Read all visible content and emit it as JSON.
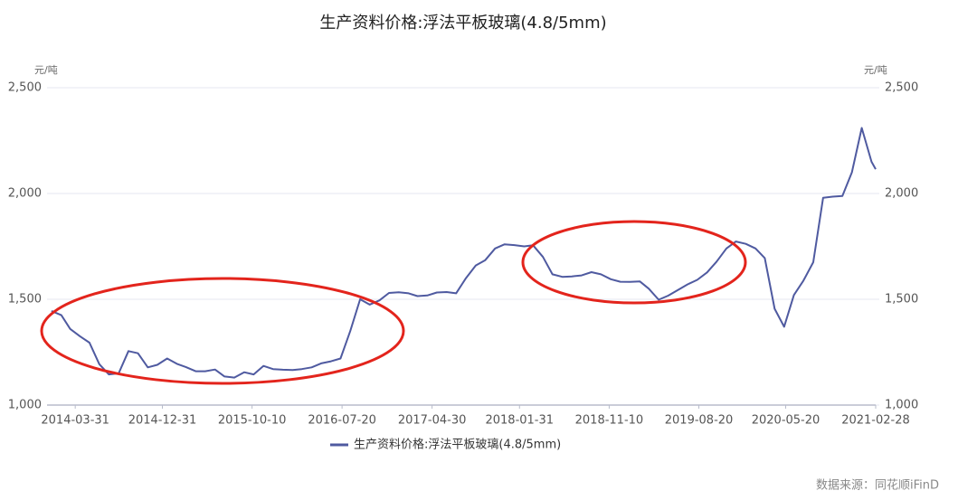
{
  "chart_data": {
    "type": "line",
    "title": "生产资料价格:浮法平板玻璃(4.8/5mm)",
    "y_unit": "元/吨",
    "y2_unit": "元/吨",
    "x": [
      "2014-01-15",
      "2014-02-15",
      "2014-03-15",
      "2014-04-15",
      "2014-05-15",
      "2014-06-15",
      "2014-07-15",
      "2014-08-15",
      "2014-09-15",
      "2014-10-15",
      "2014-11-15",
      "2014-12-15",
      "2015-01-15",
      "2015-02-15",
      "2015-03-15",
      "2015-04-15",
      "2015-05-15",
      "2015-06-15",
      "2015-07-15",
      "2015-08-15",
      "2015-09-15",
      "2015-10-15",
      "2015-11-15",
      "2015-12-15",
      "2016-01-15",
      "2016-02-15",
      "2016-03-15",
      "2016-04-15",
      "2016-05-15",
      "2016-06-15",
      "2016-07-15",
      "2016-08-15",
      "2016-09-15",
      "2016-10-15",
      "2016-11-15",
      "2016-12-15",
      "2017-01-15",
      "2017-02-15",
      "2017-03-15",
      "2017-04-15",
      "2017-05-15",
      "2017-06-15",
      "2017-07-15",
      "2017-08-15",
      "2017-09-15",
      "2017-10-15",
      "2017-11-15",
      "2017-12-15",
      "2018-01-15",
      "2018-02-15",
      "2018-03-15",
      "2018-04-15",
      "2018-05-15",
      "2018-06-15",
      "2018-07-15",
      "2018-08-15",
      "2018-09-15",
      "2018-10-15",
      "2018-11-15",
      "2018-12-15",
      "2019-01-15",
      "2019-02-15",
      "2019-03-15",
      "2019-04-15",
      "2019-05-15",
      "2019-06-15",
      "2019-07-15",
      "2019-08-15",
      "2019-09-15",
      "2019-10-15",
      "2019-11-15",
      "2019-12-15",
      "2020-01-15",
      "2020-02-15",
      "2020-03-15",
      "2020-04-15",
      "2020-05-15",
      "2020-06-15",
      "2020-07-15",
      "2020-08-15",
      "2020-09-15",
      "2020-10-15",
      "2020-11-15",
      "2020-12-15",
      "2021-01-15",
      "2021-02-15",
      "2021-02-28"
    ],
    "series": [
      {
        "name": "生产资料价格:浮法平板玻璃(4.8/5mm)",
        "color": "#4f5aa0",
        "values": [
          1445,
          1425,
          1360,
          1325,
          1295,
          1193,
          1145,
          1150,
          1255,
          1245,
          1178,
          1190,
          1220,
          1195,
          1180,
          1160,
          1160,
          1168,
          1135,
          1130,
          1155,
          1145,
          1185,
          1170,
          1167,
          1166,
          1170,
          1178,
          1197,
          1207,
          1220,
          1350,
          1500,
          1475,
          1495,
          1530,
          1533,
          1528,
          1515,
          1518,
          1532,
          1534,
          1528,
          1600,
          1660,
          1685,
          1740,
          1760,
          1756,
          1750,
          1755,
          1700,
          1618,
          1606,
          1608,
          1613,
          1628,
          1618,
          1595,
          1583,
          1582,
          1584,
          1550,
          1498,
          1517,
          1544,
          1570,
          1592,
          1627,
          1678,
          1740,
          1773,
          1762,
          1740,
          1695,
          1455,
          1370,
          1520,
          1588,
          1675,
          1980,
          1985,
          1988,
          2100,
          2310,
          2150,
          2115
        ]
      }
    ],
    "xlim": [
      "2014-01-01",
      "2021-02-28"
    ],
    "xticks": [
      "2014-03-31",
      "2014-12-31",
      "2015-10-10",
      "2016-07-20",
      "2017-04-30",
      "2018-01-31",
      "2018-11-10",
      "2019-08-20",
      "2020-05-20",
      "2021-02-28"
    ],
    "ylim": [
      1000,
      2500
    ],
    "yticks": [
      {
        "value": 1000,
        "label": "1,000"
      },
      {
        "value": 1500,
        "label": "1,500"
      },
      {
        "value": 2000,
        "label": "2,000"
      },
      {
        "value": 2500,
        "label": "2,500"
      }
    ],
    "y2lim": [
      1000,
      2500
    ],
    "y2ticks": [
      {
        "value": 1000,
        "label": "1,000"
      },
      {
        "value": 1500,
        "label": "1,500"
      },
      {
        "value": 2000,
        "label": "2,000"
      },
      {
        "value": 2500,
        "label": "2,500"
      }
    ],
    "grid": true,
    "legend": "bottom",
    "source": "数据来源：同花顺iFinD"
  }
}
